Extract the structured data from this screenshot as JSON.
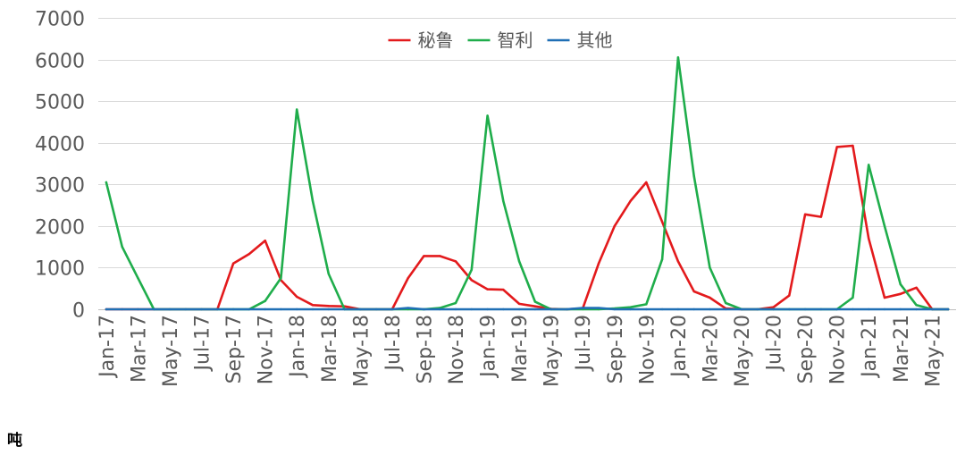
{
  "chart_data": {
    "type": "line",
    "x_tick_labels": [
      "Jan-17",
      "Mar-17",
      "May-17",
      "Jul-17",
      "Sep-17",
      "Nov-17",
      "Jan-18",
      "Mar-18",
      "May-18",
      "Jul-18",
      "Sep-18",
      "Nov-18",
      "Jan-19",
      "Mar-19",
      "May-19",
      "Jul-19",
      "Sep-19",
      "Nov-19",
      "Jan-20",
      "Mar-20",
      "May-20",
      "Jul-20",
      "Sep-20",
      "Nov-20",
      "Jan-21",
      "Mar-21",
      "May-21"
    ],
    "series": [
      {
        "name": "秘鲁",
        "color": "#e31a1c",
        "values": [
          0,
          0,
          0,
          0,
          0,
          0,
          0,
          0,
          1100,
          1330,
          1650,
          700,
          300,
          100,
          80,
          70,
          0,
          0,
          0,
          750,
          1280,
          1280,
          1150,
          700,
          480,
          470,
          130,
          70,
          10,
          0,
          20,
          1100,
          2000,
          2600,
          3050,
          2100,
          1150,
          430,
          280,
          20,
          0,
          0,
          50,
          330,
          2280,
          2220,
          3900,
          3930,
          1700,
          280,
          370,
          520,
          0,
          0
        ]
      },
      {
        "name": "智利",
        "color": "#1fad4b",
        "values": [
          3050,
          1500,
          750,
          0,
          0,
          0,
          0,
          0,
          0,
          0,
          200,
          750,
          4800,
          2600,
          850,
          0,
          0,
          0,
          0,
          0,
          0,
          30,
          150,
          950,
          4650,
          2600,
          1150,
          180,
          0,
          0,
          0,
          0,
          20,
          50,
          120,
          1200,
          6050,
          3200,
          1000,
          150,
          0,
          0,
          0,
          0,
          0,
          0,
          0,
          280,
          3470,
          2000,
          600,
          100,
          0,
          0
        ]
      },
      {
        "name": "其他",
        "color": "#1f6fb5",
        "values": [
          0,
          0,
          0,
          0,
          0,
          0,
          0,
          0,
          0,
          0,
          0,
          0,
          0,
          0,
          0,
          0,
          0,
          0,
          0,
          30,
          0,
          0,
          0,
          0,
          0,
          0,
          0,
          0,
          0,
          0,
          30,
          30,
          0,
          0,
          0,
          0,
          0,
          0,
          0,
          0,
          0,
          0,
          0,
          0,
          0,
          0,
          0,
          0,
          0,
          0,
          0,
          0,
          0,
          0
        ]
      }
    ],
    "ylim": [
      0,
      7000
    ],
    "yticks": [
      0,
      1000,
      2000,
      3000,
      4000,
      5000,
      6000,
      7000
    ],
    "unit": "吨",
    "legend": "top-center",
    "grid": true
  }
}
